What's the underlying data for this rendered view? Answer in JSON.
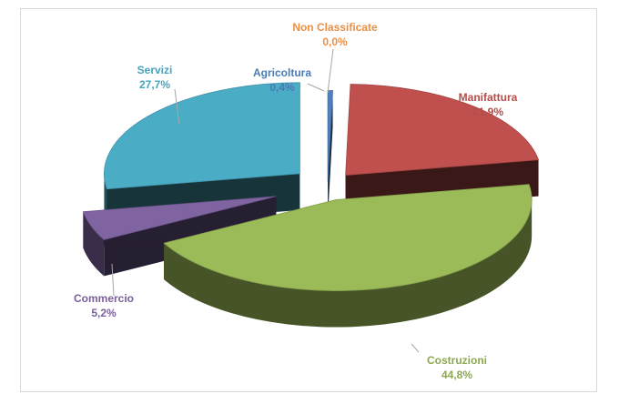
{
  "chart_data": {
    "type": "pie",
    "style": "3d-exploded",
    "title": "",
    "slices": [
      {
        "label": "Non Classificate",
        "value": 0.0,
        "value_label": "0,0%",
        "color": "#f79646"
      },
      {
        "label": "Agricoltura",
        "value": 0.4,
        "value_label": "0,4%",
        "color": "#4f81bd"
      },
      {
        "label": "Manifattura",
        "value": 21.9,
        "value_label": "21,9%",
        "color": "#c0504d"
      },
      {
        "label": "Costruzioni",
        "value": 44.8,
        "value_label": "44,8%",
        "color": "#9bbb59"
      },
      {
        "label": "Commercio",
        "value": 5.2,
        "value_label": "5,2%",
        "color": "#8064a2"
      },
      {
        "label": "Servizi",
        "value": 27.7,
        "value_label": "27,7%",
        "color": "#4bacc6"
      }
    ]
  }
}
